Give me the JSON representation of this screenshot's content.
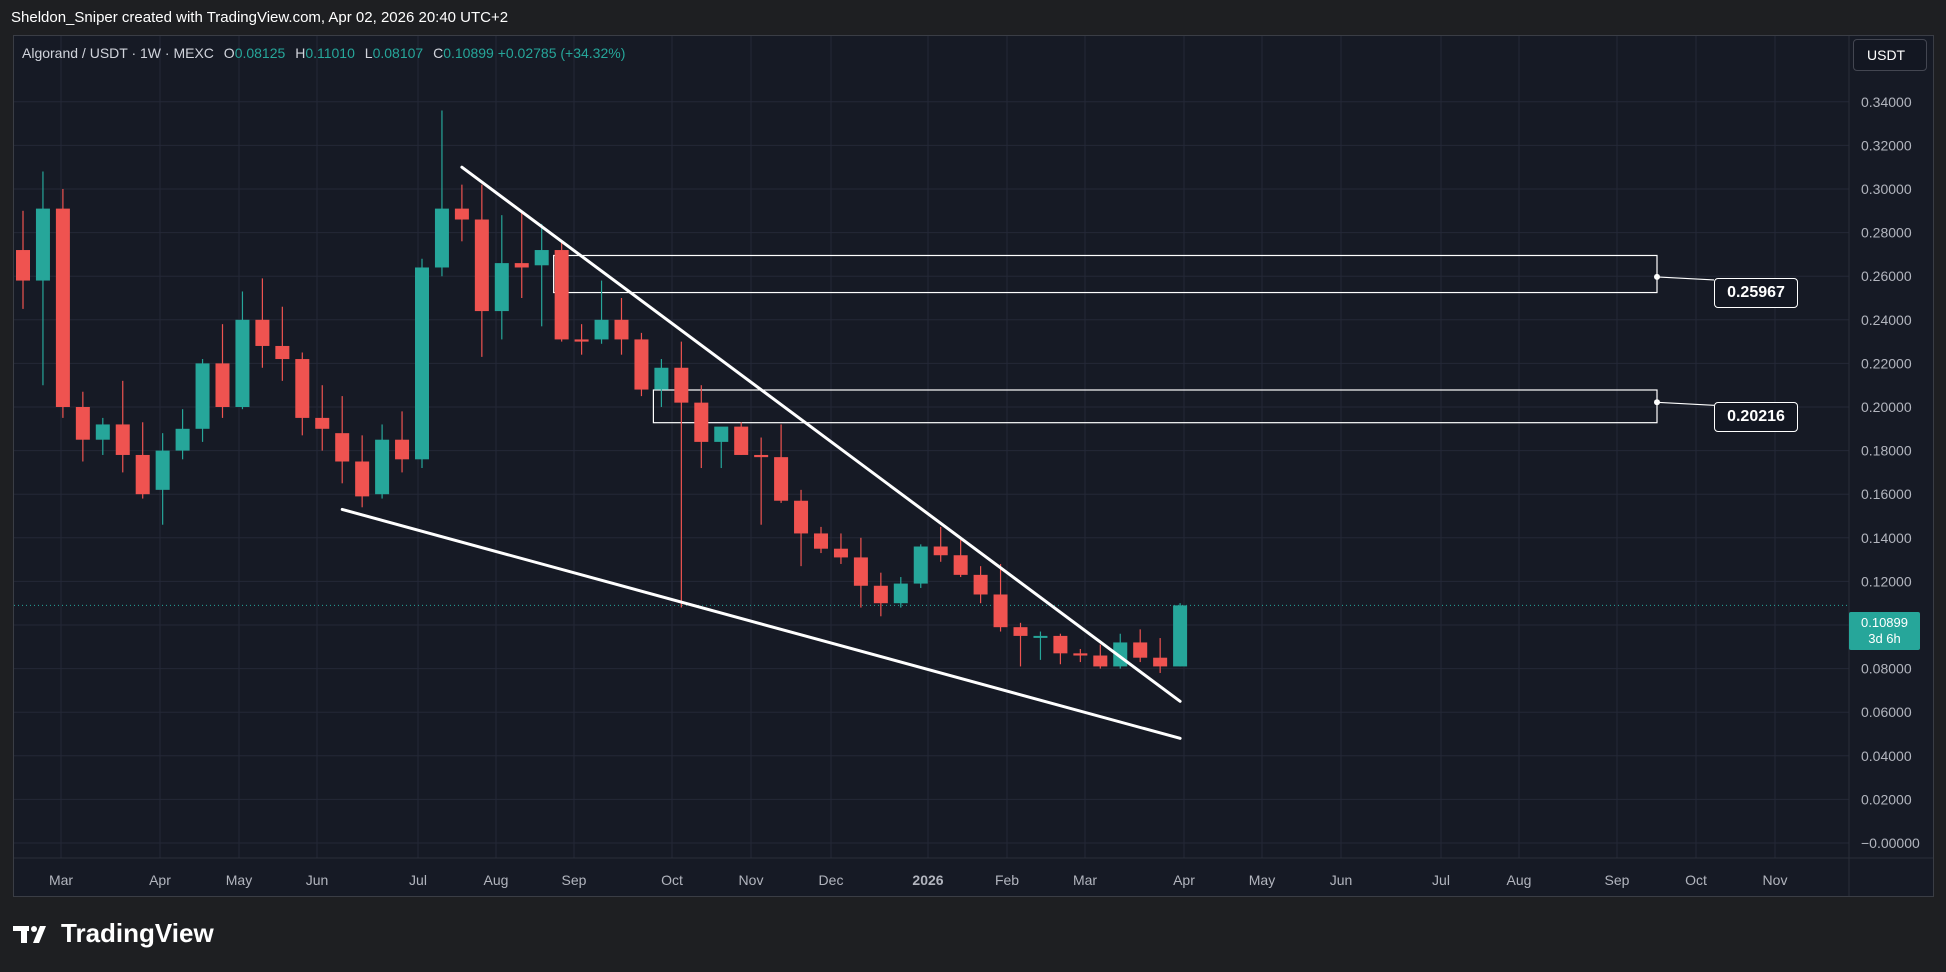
{
  "header": {
    "credit": "Sheldon_Sniper created with TradingView.com, Apr 02, 2026 20:40 UTC+2"
  },
  "legend": {
    "symbol": "Algorand / USDT · 1W · MEXC",
    "open_label": "O",
    "open": "0.08125",
    "high_label": "H",
    "high": "0.11010",
    "low_label": "L",
    "low": "0.08107",
    "close_label": "C",
    "close": "0.10899",
    "change": "+0.02785 (+34.32%)"
  },
  "currency": "USDT",
  "price_tags": {
    "upper": "0.25967",
    "lower": "0.20216"
  },
  "last_price": {
    "value": "0.10899",
    "countdown": "3d 6h"
  },
  "footer": {
    "brand": "TradingView"
  },
  "colors": {
    "up": "#26a69a",
    "down": "#ef5350",
    "background": "#161a25",
    "grid": "#242837"
  },
  "chart_data": {
    "type": "candlestick",
    "timeframe": "1W",
    "ylim": [
      0,
      0.35
    ],
    "y_ticks": [
      "0.34000",
      "0.32000",
      "0.30000",
      "0.28000",
      "0.26000",
      "0.24000",
      "0.22000",
      "0.20000",
      "0.18000",
      "0.16000",
      "0.14000",
      "0.12000",
      "0.10000",
      "0.08000",
      "0.06000",
      "0.04000",
      "0.02000",
      "−0.00000"
    ],
    "x_ticks": [
      "Mar",
      "Apr",
      "May",
      "Jun",
      "Jul",
      "Aug",
      "Sep",
      "Oct",
      "Nov",
      "Dec",
      "2026",
      "Feb",
      "Mar",
      "Apr",
      "May",
      "Jun",
      "Jul",
      "Aug",
      "Sep",
      "Oct",
      "Nov"
    ],
    "candles": [
      {
        "o": 0.272,
        "h": 0.29,
        "l": 0.245,
        "c": 0.258
      },
      {
        "o": 0.258,
        "h": 0.308,
        "l": 0.21,
        "c": 0.291
      },
      {
        "o": 0.291,
        "h": 0.3,
        "l": 0.195,
        "c": 0.2
      },
      {
        "o": 0.2,
        "h": 0.207,
        "l": 0.175,
        "c": 0.185
      },
      {
        "o": 0.185,
        "h": 0.195,
        "l": 0.178,
        "c": 0.192
      },
      {
        "o": 0.192,
        "h": 0.212,
        "l": 0.17,
        "c": 0.178
      },
      {
        "o": 0.178,
        "h": 0.193,
        "l": 0.158,
        "c": 0.16
      },
      {
        "o": 0.162,
        "h": 0.188,
        "l": 0.146,
        "c": 0.18
      },
      {
        "o": 0.18,
        "h": 0.199,
        "l": 0.176,
        "c": 0.19
      },
      {
        "o": 0.19,
        "h": 0.222,
        "l": 0.184,
        "c": 0.22
      },
      {
        "o": 0.22,
        "h": 0.238,
        "l": 0.195,
        "c": 0.2
      },
      {
        "o": 0.2,
        "h": 0.253,
        "l": 0.199,
        "c": 0.24
      },
      {
        "o": 0.24,
        "h": 0.259,
        "l": 0.218,
        "c": 0.228
      },
      {
        "o": 0.228,
        "h": 0.246,
        "l": 0.212,
        "c": 0.222
      },
      {
        "o": 0.222,
        "h": 0.225,
        "l": 0.187,
        "c": 0.195
      },
      {
        "o": 0.195,
        "h": 0.21,
        "l": 0.18,
        "c": 0.19
      },
      {
        "o": 0.188,
        "h": 0.205,
        "l": 0.165,
        "c": 0.175
      },
      {
        "o": 0.175,
        "h": 0.187,
        "l": 0.154,
        "c": 0.159
      },
      {
        "o": 0.16,
        "h": 0.192,
        "l": 0.158,
        "c": 0.185
      },
      {
        "o": 0.185,
        "h": 0.198,
        "l": 0.17,
        "c": 0.176
      },
      {
        "o": 0.176,
        "h": 0.268,
        "l": 0.172,
        "c": 0.264
      },
      {
        "o": 0.264,
        "h": 0.336,
        "l": 0.26,
        "c": 0.291
      },
      {
        "o": 0.291,
        "h": 0.302,
        "l": 0.276,
        "c": 0.286
      },
      {
        "o": 0.286,
        "h": 0.302,
        "l": 0.223,
        "c": 0.244
      },
      {
        "o": 0.244,
        "h": 0.288,
        "l": 0.231,
        "c": 0.266
      },
      {
        "o": 0.266,
        "h": 0.29,
        "l": 0.25,
        "c": 0.264
      },
      {
        "o": 0.265,
        "h": 0.284,
        "l": 0.237,
        "c": 0.272
      },
      {
        "o": 0.272,
        "h": 0.276,
        "l": 0.23,
        "c": 0.231
      },
      {
        "o": 0.231,
        "h": 0.238,
        "l": 0.224,
        "c": 0.23
      },
      {
        "o": 0.231,
        "h": 0.258,
        "l": 0.229,
        "c": 0.24
      },
      {
        "o": 0.24,
        "h": 0.25,
        "l": 0.224,
        "c": 0.231
      },
      {
        "o": 0.231,
        "h": 0.234,
        "l": 0.205,
        "c": 0.208
      },
      {
        "o": 0.208,
        "h": 0.222,
        "l": 0.2,
        "c": 0.218
      },
      {
        "o": 0.218,
        "h": 0.23,
        "l": 0.108,
        "c": 0.202
      },
      {
        "o": 0.202,
        "h": 0.21,
        "l": 0.172,
        "c": 0.184
      },
      {
        "o": 0.184,
        "h": 0.19,
        "l": 0.172,
        "c": 0.191
      },
      {
        "o": 0.191,
        "h": 0.193,
        "l": 0.178,
        "c": 0.178
      },
      {
        "o": 0.178,
        "h": 0.186,
        "l": 0.146,
        "c": 0.177
      },
      {
        "o": 0.177,
        "h": 0.192,
        "l": 0.156,
        "c": 0.157
      },
      {
        "o": 0.157,
        "h": 0.162,
        "l": 0.127,
        "c": 0.142
      },
      {
        "o": 0.142,
        "h": 0.145,
        "l": 0.133,
        "c": 0.135
      },
      {
        "o": 0.135,
        "h": 0.142,
        "l": 0.128,
        "c": 0.131
      },
      {
        "o": 0.131,
        "h": 0.14,
        "l": 0.108,
        "c": 0.118
      },
      {
        "o": 0.118,
        "h": 0.124,
        "l": 0.104,
        "c": 0.11
      },
      {
        "o": 0.11,
        "h": 0.122,
        "l": 0.108,
        "c": 0.119
      },
      {
        "o": 0.119,
        "h": 0.137,
        "l": 0.117,
        "c": 0.136
      },
      {
        "o": 0.136,
        "h": 0.145,
        "l": 0.129,
        "c": 0.132
      },
      {
        "o": 0.132,
        "h": 0.139,
        "l": 0.122,
        "c": 0.123
      },
      {
        "o": 0.123,
        "h": 0.127,
        "l": 0.11,
        "c": 0.114
      },
      {
        "o": 0.114,
        "h": 0.128,
        "l": 0.097,
        "c": 0.099
      },
      {
        "o": 0.099,
        "h": 0.101,
        "l": 0.081,
        "c": 0.095
      },
      {
        "o": 0.095,
        "h": 0.097,
        "l": 0.084,
        "c": 0.095
      },
      {
        "o": 0.095,
        "h": 0.096,
        "l": 0.082,
        "c": 0.087
      },
      {
        "o": 0.087,
        "h": 0.089,
        "l": 0.083,
        "c": 0.086
      },
      {
        "o": 0.086,
        "h": 0.091,
        "l": 0.08,
        "c": 0.081
      },
      {
        "o": 0.081,
        "h": 0.096,
        "l": 0.08,
        "c": 0.092
      },
      {
        "o": 0.092,
        "h": 0.098,
        "l": 0.083,
        "c": 0.085
      },
      {
        "o": 0.085,
        "h": 0.094,
        "l": 0.078,
        "c": 0.081
      },
      {
        "o": 0.081,
        "h": 0.11,
        "l": 0.081,
        "c": 0.109
      }
    ],
    "trendlines": [
      {
        "name": "falling-wedge-upper",
        "from_candle": 22,
        "from_price": 0.31,
        "to_candle": 58,
        "to_price": 0.065
      },
      {
        "name": "falling-wedge-lower",
        "from_candle": 16,
        "from_price": 0.153,
        "to_candle": 58,
        "to_price": 0.048
      }
    ],
    "zones": [
      {
        "name": "upper-resistance-zone",
        "from_candle": 27,
        "top": 0.2695,
        "bottom": 0.2525,
        "mid": 0.25967
      },
      {
        "name": "lower-resistance-zone",
        "from_candle": 32,
        "top": 0.2078,
        "bottom": 0.1928,
        "mid": 0.20216
      }
    ],
    "last_price": 0.10899
  }
}
